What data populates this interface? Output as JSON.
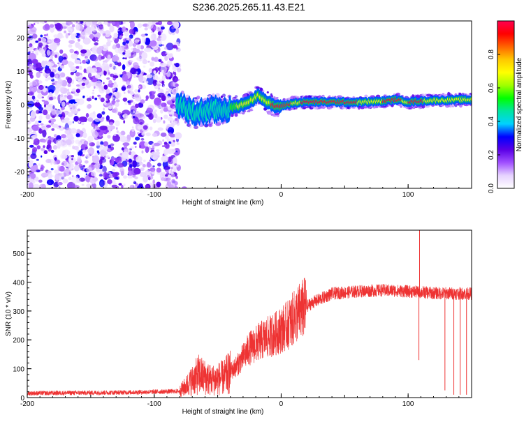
{
  "figure": {
    "title": "S236.2025.265.11.43.E21"
  },
  "chart_data": [
    {
      "type": "heatmap",
      "name": "spectrogram",
      "title": "S236.2025.265.11.43.E21",
      "xlabel": "Height of straight line (km)",
      "ylabel": "Frequency (Hz)",
      "xlim": [
        -200,
        150
      ],
      "ylim": [
        -25,
        25
      ],
      "x_ticks": [
        -200,
        -100,
        0,
        100
      ],
      "x_tick_labels": [
        "-200",
        "-100",
        "0",
        "100"
      ],
      "y_ticks": [
        -20,
        -10,
        0,
        10,
        20
      ],
      "y_tick_labels": [
        "-20",
        "-10",
        "0",
        "10",
        "20"
      ],
      "noise_region_x": [
        -200,
        -80
      ],
      "ridge": [
        {
          "x": -80,
          "f": 0.0
        },
        {
          "x": -70,
          "f": -2.5
        },
        {
          "x": -60,
          "f": -2.0
        },
        {
          "x": -50,
          "f": -1.5
        },
        {
          "x": -40,
          "f": -1.0
        },
        {
          "x": -30,
          "f": 0.0
        },
        {
          "x": -22,
          "f": 1.5
        },
        {
          "x": -18,
          "f": 3.0
        },
        {
          "x": -12,
          "f": 1.0
        },
        {
          "x": -5,
          "f": -0.5
        },
        {
          "x": 0,
          "f": -0.5
        },
        {
          "x": 10,
          "f": 0.5
        },
        {
          "x": 20,
          "f": 0.8
        },
        {
          "x": 40,
          "f": 0.8
        },
        {
          "x": 60,
          "f": 0.7
        },
        {
          "x": 80,
          "f": 1.0
        },
        {
          "x": 90,
          "f": 1.5
        },
        {
          "x": 100,
          "f": 0.8
        },
        {
          "x": 120,
          "f": 1.3
        },
        {
          "x": 150,
          "f": 1.5
        }
      ],
      "colorbar": {
        "label": "Normalized spectral amplitude",
        "range": [
          0.0,
          1.0
        ],
        "ticks": [
          0.0,
          0.2,
          0.4,
          0.6,
          0.8
        ],
        "tick_labels": [
          "0.0",
          "0.2",
          "0.4",
          "0.6",
          "0.8"
        ],
        "stops": [
          "#ffffff",
          "#e6d2ff",
          "#a050ff",
          "#5a00e6",
          "#0000ff",
          "#00d2ff",
          "#00e6a0",
          "#00ff00",
          "#a0ff00",
          "#ffff00",
          "#ffc800",
          "#ff6400",
          "#ff0000",
          "#ff0050"
        ]
      }
    },
    {
      "type": "line",
      "name": "snr",
      "xlabel": "Height of straight line (km)",
      "ylabel": "SNR (10 * v/v)",
      "xlim": [
        -200,
        150
      ],
      "ylim": [
        0,
        580
      ],
      "x_ticks": [
        -200,
        -100,
        0,
        100
      ],
      "x_tick_labels": [
        "-200",
        "-100",
        "0",
        "100"
      ],
      "y_ticks": [
        0,
        100,
        200,
        300,
        400,
        500
      ],
      "y_tick_labels": [
        "0",
        "100",
        "200",
        "300",
        "400",
        "500"
      ],
      "color": "#ee3333",
      "envelope": [
        {
          "x": -200,
          "y": 15
        },
        {
          "x": -120,
          "y": 18
        },
        {
          "x": -80,
          "y": 22
        },
        {
          "x": -75,
          "y": 40
        },
        {
          "x": -65,
          "y": 80
        },
        {
          "x": -55,
          "y": 60
        },
        {
          "x": -45,
          "y": 70
        },
        {
          "x": -35,
          "y": 110
        },
        {
          "x": -25,
          "y": 170
        },
        {
          "x": -15,
          "y": 200
        },
        {
          "x": -5,
          "y": 220
        },
        {
          "x": 5,
          "y": 250
        },
        {
          "x": 15,
          "y": 300
        },
        {
          "x": 25,
          "y": 330
        },
        {
          "x": 40,
          "y": 360
        },
        {
          "x": 60,
          "y": 368
        },
        {
          "x": 80,
          "y": 372
        },
        {
          "x": 100,
          "y": 368
        },
        {
          "x": 120,
          "y": 362
        },
        {
          "x": 150,
          "y": 360
        }
      ],
      "spikes": [
        {
          "x": 109,
          "y": 580
        },
        {
          "x": 108.5,
          "y": 130
        },
        {
          "x": 129,
          "y": 25
        },
        {
          "x": 136,
          "y": 10
        },
        {
          "x": 141,
          "y": 10
        },
        {
          "x": 146,
          "y": 10
        }
      ]
    }
  ]
}
